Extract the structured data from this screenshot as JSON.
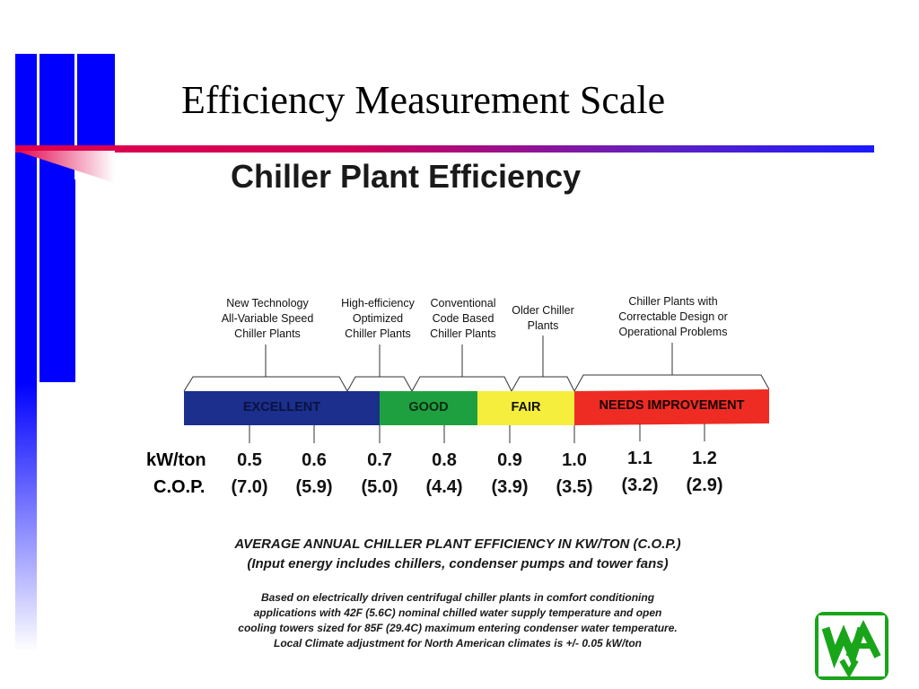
{
  "slide": {
    "title": "Efficiency Measurement Scale"
  },
  "chart": {
    "title": "Chiller Plant Efficiency",
    "categories": [
      {
        "lines": [
          "New Technology",
          "All-Variable Speed",
          "Chiller Plants"
        ]
      },
      {
        "lines": [
          "High-efficiency",
          "Optimized",
          "Chiller Plants"
        ]
      },
      {
        "lines": [
          "Conventional",
          "Code Based",
          "Chiller Plants"
        ]
      },
      {
        "lines": [
          "Older Chiller",
          "Plants"
        ]
      },
      {
        "lines": [
          "Chiller Plants with",
          "Correctable Design or",
          "Operational Problems"
        ]
      }
    ],
    "ratings": [
      {
        "label": "EXCELLENT",
        "color": "#1c2f8c",
        "text_color": "#0a1240"
      },
      {
        "label": "GOOD",
        "color": "#1fa040",
        "text_color": "#0b2a12"
      },
      {
        "label": "FAIR",
        "color": "#f5ee3c",
        "text_color": "#111111"
      },
      {
        "label": "NEEDS IMPROVEMENT",
        "color": "#ee2c24",
        "text_color": "#1a0000"
      }
    ],
    "row_labels": {
      "kw": "kW/ton",
      "cop": "C.O.P."
    },
    "ticks": [
      {
        "kw": "0.5",
        "cop": "(7.0)"
      },
      {
        "kw": "0.6",
        "cop": "(5.9)"
      },
      {
        "kw": "0.7",
        "cop": "(5.0)"
      },
      {
        "kw": "0.8",
        "cop": "(4.4)"
      },
      {
        "kw": "0.9",
        "cop": "(3.9)"
      },
      {
        "kw": "1.0",
        "cop": "(3.5)"
      },
      {
        "kw": "1.1",
        "cop": "(3.2)"
      },
      {
        "kw": "1.2",
        "cop": "(2.9)"
      }
    ],
    "caption": {
      "line1": "AVERAGE ANNUAL CHILLER PLANT EFFICIENCY IN KW/TON (C.O.P.)",
      "line2": "(Input energy includes chillers, condenser pumps and tower fans)"
    },
    "note": [
      "Based on electrically driven centrifugal chiller plants in comfort conditioning",
      "applications with 42F (5.6C) nominal chilled water supply temperature and open",
      "cooling towers sized for 85F (29.4C) maximum entering condenser water temperature.",
      "Local Climate adjustment for North American climates is +/- 0.05 kW/ton"
    ]
  },
  "logo": {
    "text": "WA"
  },
  "colors": {
    "accent_blue": "#0000ff",
    "accent_red": "#e0004a"
  }
}
